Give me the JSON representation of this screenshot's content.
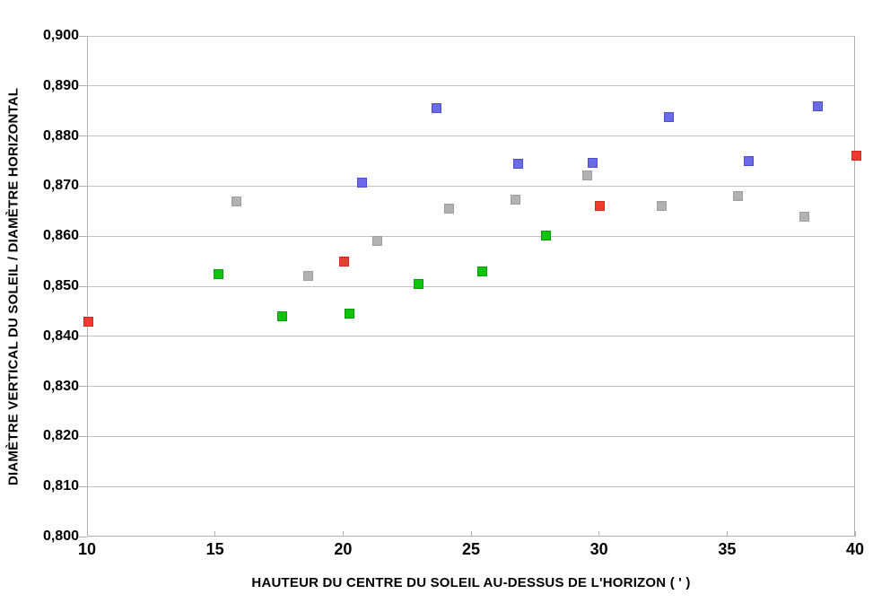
{
  "chart": {
    "x_axis": {
      "title": "HAUTEUR DU CENTRE DU SOLEIL AU-DESSUS DE L'HORIZON  ( ' )",
      "ticks": [
        {
          "value": 10,
          "label": "10"
        },
        {
          "value": 15,
          "label": "15"
        },
        {
          "value": 20,
          "label": "20"
        },
        {
          "value": 25,
          "label": "25"
        },
        {
          "value": 30,
          "label": "30"
        },
        {
          "value": 35,
          "label": "35"
        },
        {
          "value": 40,
          "label": "40"
        }
      ]
    },
    "y_axis": {
      "title": "DIAMÈTRE VERTICAL DU SOLEIL / DIAMÈTRE HORIZONTAL",
      "ticks": [
        {
          "value": 0.9,
          "label": "0,900"
        },
        {
          "value": 0.89,
          "label": "0,890"
        },
        {
          "value": 0.88,
          "label": "0,880"
        },
        {
          "value": 0.87,
          "label": "0,870"
        },
        {
          "value": 0.86,
          "label": "0,860"
        },
        {
          "value": 0.85,
          "label": "0,850"
        },
        {
          "value": 0.84,
          "label": "0,840"
        },
        {
          "value": 0.83,
          "label": "0,830"
        },
        {
          "value": 0.82,
          "label": "0,820"
        },
        {
          "value": 0.81,
          "label": "0,810"
        },
        {
          "value": 0.8,
          "label": "0,800"
        }
      ]
    },
    "colors": {
      "gridline": "#c2c2c2",
      "axis": "#b1b1b1",
      "text": "#000000"
    }
  },
  "chart_data": {
    "type": "scatter",
    "title": "",
    "xlabel": "HAUTEUR DU CENTRE DU SOLEIL AU-DESSUS DE L'HORIZON  ( ' )",
    "ylabel": "DIAMÈTRE VERTICAL DU SOLEIL / DIAMÈTRE HORIZONTAL",
    "xlim": [
      10,
      40
    ],
    "ylim": [
      0.8,
      0.9
    ],
    "grid": "horizontal-only",
    "legend_position": "none",
    "marker": "square",
    "series": [
      {
        "name": "red-series",
        "color": "#ee3a30",
        "border_color": "#d32a22",
        "points": [
          [
            10,
            0.843
          ],
          [
            20,
            0.855
          ],
          [
            30,
            0.866
          ],
          [
            40,
            0.876
          ]
        ]
      },
      {
        "name": "green-series",
        "color": "#0fc40f",
        "border_color": "#0a9e0a",
        "points": [
          [
            15.1,
            0.8525
          ],
          [
            17.6,
            0.844
          ],
          [
            20.2,
            0.8445
          ],
          [
            22.9,
            0.8505
          ],
          [
            25.4,
            0.853
          ],
          [
            27.9,
            0.8602
          ]
        ]
      },
      {
        "name": "gray-series",
        "color": "#b2b2b2",
        "border_color": "#9e9e9e",
        "points": [
          [
            15.8,
            0.867
          ],
          [
            18.6,
            0.852
          ],
          [
            21.3,
            0.859
          ],
          [
            24.1,
            0.8655
          ],
          [
            26.7,
            0.8673
          ],
          [
            29.5,
            0.8722
          ],
          [
            32.4,
            0.8661
          ],
          [
            35.4,
            0.868
          ],
          [
            38.0,
            0.8639
          ]
        ]
      },
      {
        "name": "blue-series",
        "color": "#6b6be8",
        "border_color": "#4d4dd4",
        "points": [
          [
            20.7,
            0.8707
          ],
          [
            23.6,
            0.8855
          ],
          [
            26.8,
            0.8745
          ],
          [
            29.7,
            0.8746
          ],
          [
            32.7,
            0.8837
          ],
          [
            35.8,
            0.875
          ],
          [
            38.5,
            0.886
          ]
        ]
      }
    ]
  }
}
